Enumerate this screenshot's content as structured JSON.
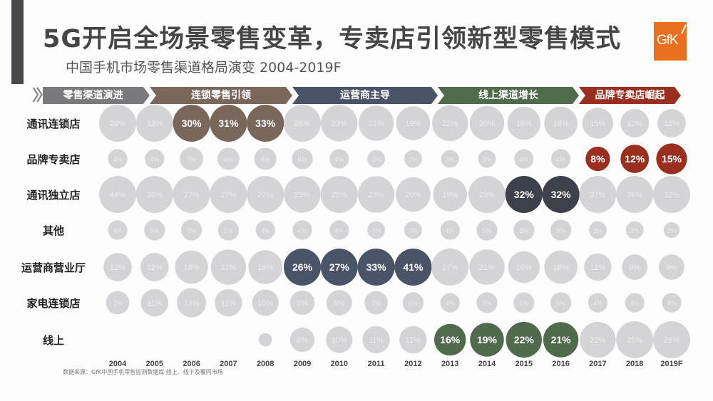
{
  "header": {
    "title": "5G开启全场景零售变革，专卖店引领新型零售模式",
    "subtitle": "中国手机市场零售渠道格局演变 2004-2019F",
    "logo_text": "GfK"
  },
  "colors": {
    "inactive": "#d4d4d6",
    "phase_evolution": "#7a7a7c",
    "phase_chain": "#7a675c",
    "phase_operator": "#4a5468",
    "phase_online": "#4f6b4c",
    "phase_brand": "#9a2f1f"
  },
  "phases": [
    {
      "label": "零售渠道演进",
      "color": "#7a7a7c"
    },
    {
      "label": "连锁零售引领",
      "color": "#7a675c"
    },
    {
      "label": "运营商主导",
      "color": "#4a5468"
    },
    {
      "label": "线上渠道增长",
      "color": "#4f6b4c"
    },
    {
      "label": "品牌专卖店崛起",
      "color": "#9a2f1f"
    }
  ],
  "footnote": "数据来源：GfK中国手机零售监测数据库 线上、线下及覆同市场",
  "chart_data": {
    "type": "bubble-matrix",
    "title": "中国手机市场零售渠道格局演变 2004-2019F",
    "x": [
      "2004",
      "2005",
      "2006",
      "2007",
      "2008",
      "2009",
      "2010",
      "2011",
      "2012",
      "2013",
      "2014",
      "2015",
      "2016",
      "2017",
      "2018",
      "2019F"
    ],
    "unit": "%",
    "series": [
      {
        "name": "通讯连锁店",
        "values": [
          28,
          32,
          30,
          31,
          33,
          26,
          23,
          21,
          19,
          22,
          20,
          18,
          18,
          15,
          12,
          12
        ],
        "highlight": [
          2,
          3,
          4
        ],
        "highlight_color": "#7a675c"
      },
      {
        "name": "品牌专卖店",
        "values": [
          4,
          4,
          7,
          6,
          6,
          5,
          4,
          3,
          3,
          3,
          3,
          4,
          4,
          8,
          12,
          15
        ],
        "highlight": [
          13,
          14,
          15
        ],
        "highlight_color": "#9a2f1f"
      },
      {
        "name": "通讯独立店",
        "values": [
          44,
          36,
          27,
          27,
          27,
          23,
          25,
          23,
          20,
          19,
          29,
          32,
          32,
          37,
          36,
          32
        ],
        "highlight": [
          11,
          12
        ],
        "highlight_color": "#3d4149"
      },
      {
        "name": "其他",
        "values": [
          4,
          5,
          5,
          5,
          4,
          4,
          4,
          3,
          3,
          4,
          5,
          5,
          5,
          3,
          3,
          2
        ],
        "highlight": [],
        "highlight_color": ""
      },
      {
        "name": "运营商营业厅",
        "values": [
          12,
          12,
          18,
          21,
          19,
          26,
          27,
          33,
          41,
          27,
          21,
          16,
          18,
          11,
          9,
          9
        ],
        "highlight": [
          5,
          6,
          7,
          8
        ],
        "highlight_color": "#4a5468"
      },
      {
        "name": "家电连锁店",
        "values": [
          7,
          11,
          13,
          11,
          10,
          8,
          9,
          7,
          5,
          4,
          5,
          5,
          5,
          4,
          4,
          4
        ],
        "highlight": [],
        "highlight_color": ""
      },
      {
        "name": "线上",
        "values": [
          null,
          null,
          null,
          null,
          1,
          8,
          10,
          11,
          11,
          16,
          19,
          22,
          21,
          22,
          25,
          26
        ],
        "highlight": [
          9,
          10,
          11,
          12
        ],
        "highlight_color": "#4f6b4c"
      }
    ],
    "phases": [
      {
        "label": "零售渠道演进",
        "from": "2004",
        "to": "2005"
      },
      {
        "label": "连锁零售引领",
        "from": "2006",
        "to": "2008"
      },
      {
        "label": "运营商主导",
        "from": "2009",
        "to": "2012"
      },
      {
        "label": "线上渠道增长",
        "from": "2013",
        "to": "2016"
      },
      {
        "label": "品牌专卖店崛起",
        "from": "2017",
        "to": "2019F"
      }
    ]
  }
}
